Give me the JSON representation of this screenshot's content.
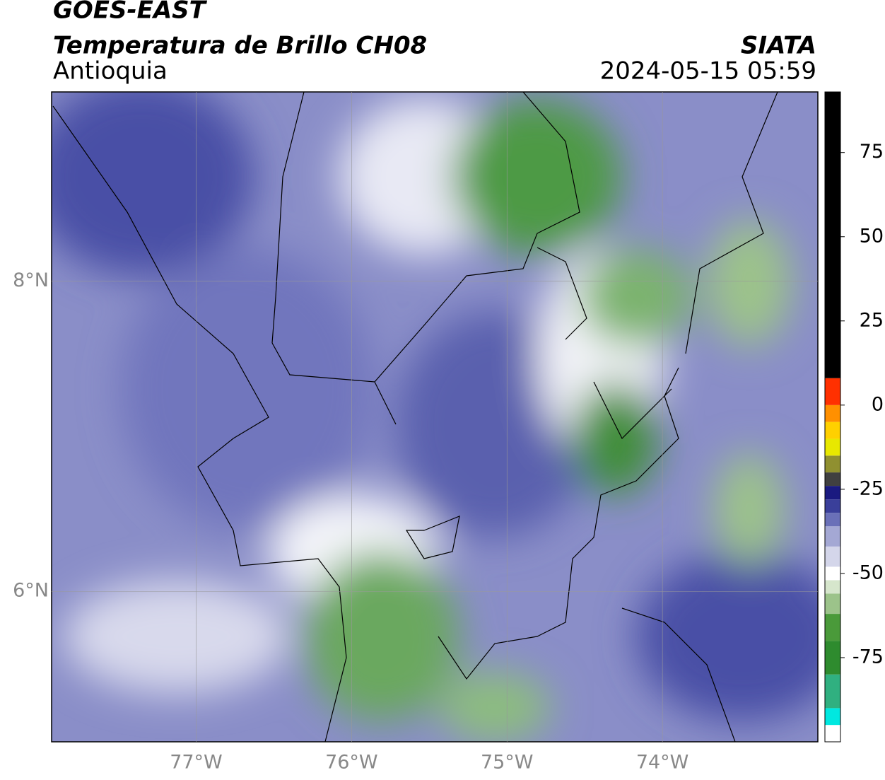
{
  "header": {
    "title": "GOES-EAST",
    "subtitle": "Temperatura de Brillo CH08",
    "region": "Antioquia",
    "source": "SIATA",
    "datetime": "2024-05-15 05:59"
  },
  "map": {
    "xlim": [
      -77.93,
      -73.0
    ],
    "ylim": [
      5.03,
      9.22
    ],
    "xticks": [
      {
        "value": -77,
        "label": "77°W"
      },
      {
        "value": -76,
        "label": "76°W"
      },
      {
        "value": -75,
        "label": "75°W"
      },
      {
        "value": -74,
        "label": "74°W"
      }
    ],
    "yticks": [
      {
        "value": 8,
        "label": "8°N"
      },
      {
        "value": 6,
        "label": "6°N"
      }
    ],
    "grid": true
  },
  "colorbar": {
    "lim": [
      -100,
      93
    ],
    "ticks": [
      75,
      50,
      25,
      0,
      -25,
      -50,
      -75
    ],
    "segments": [
      {
        "from": -100,
        "to": -95,
        "color": "#ffffff"
      },
      {
        "from": -95,
        "to": -90,
        "color": "#00e8e0"
      },
      {
        "from": -90,
        "to": -80,
        "color": "#30b080"
      },
      {
        "from": -80,
        "to": -70,
        "color": "#2e8b2e"
      },
      {
        "from": -70,
        "to": -62,
        "color": "#4a9a3a"
      },
      {
        "from": -62,
        "to": -56,
        "color": "#9cc38a"
      },
      {
        "from": -56,
        "to": -52,
        "color": "#d6e6cc"
      },
      {
        "from": -52,
        "to": -48,
        "color": "#ffffff"
      },
      {
        "from": -48,
        "to": -42,
        "color": "#d4d6ea"
      },
      {
        "from": -42,
        "to": -36,
        "color": "#a4a8d4"
      },
      {
        "from": -36,
        "to": -32,
        "color": "#6a70b8"
      },
      {
        "from": -32,
        "to": -28,
        "color": "#3a3f9a"
      },
      {
        "from": -28,
        "to": -24,
        "color": "#1a1a80"
      },
      {
        "from": -24,
        "to": -20,
        "color": "#404040"
      },
      {
        "from": -20,
        "to": -15,
        "color": "#909030"
      },
      {
        "from": -15,
        "to": -10,
        "color": "#e8e800"
      },
      {
        "from": -10,
        "to": -5,
        "color": "#ffd000"
      },
      {
        "from": -5,
        "to": 0,
        "color": "#ff9000"
      },
      {
        "from": 0,
        "to": 8,
        "color": "#ff3000"
      },
      {
        "from": 8,
        "to": 93,
        "color": "#000000"
      }
    ]
  }
}
